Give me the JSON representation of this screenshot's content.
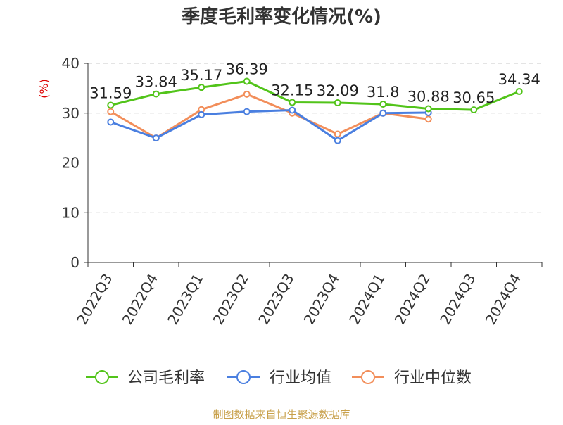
{
  "chart_data": {
    "type": "line",
    "title": "季度毛利率变化情况(%)",
    "ylabel": "(%)",
    "xlabel": "",
    "categories": [
      "2022Q3",
      "2022Q4",
      "2023Q1",
      "2023Q2",
      "2023Q3",
      "2023Q4",
      "2024Q1",
      "2024Q2",
      "2024Q3",
      "2024Q4"
    ],
    "ylim": [
      0,
      40
    ],
    "yticks": [
      0,
      10,
      20,
      30,
      40
    ],
    "grid": true,
    "legend_position": "bottom",
    "series": [
      {
        "name": "公司毛利率",
        "color": "#52c41a",
        "values": [
          31.59,
          33.84,
          35.17,
          36.39,
          32.15,
          32.09,
          31.8,
          30.88,
          30.65,
          34.34
        ],
        "labels": [
          "31.59",
          "33.84",
          "35.17",
          "36.39",
          "32.15",
          "32.09",
          "31.8",
          "30.88",
          "30.65",
          "34.34"
        ]
      },
      {
        "name": "行业均值",
        "color": "#4a7fe0",
        "values": [
          28.2,
          25.0,
          29.7,
          30.3,
          30.6,
          24.5,
          30.0,
          30.1,
          null,
          null
        ]
      },
      {
        "name": "行业中位数",
        "color": "#f28e5a",
        "values": [
          30.3,
          25.0,
          30.7,
          33.8,
          30.0,
          25.8,
          30.0,
          28.8,
          null,
          null
        ]
      }
    ]
  },
  "source": "制图数据来自恒生聚源数据库"
}
